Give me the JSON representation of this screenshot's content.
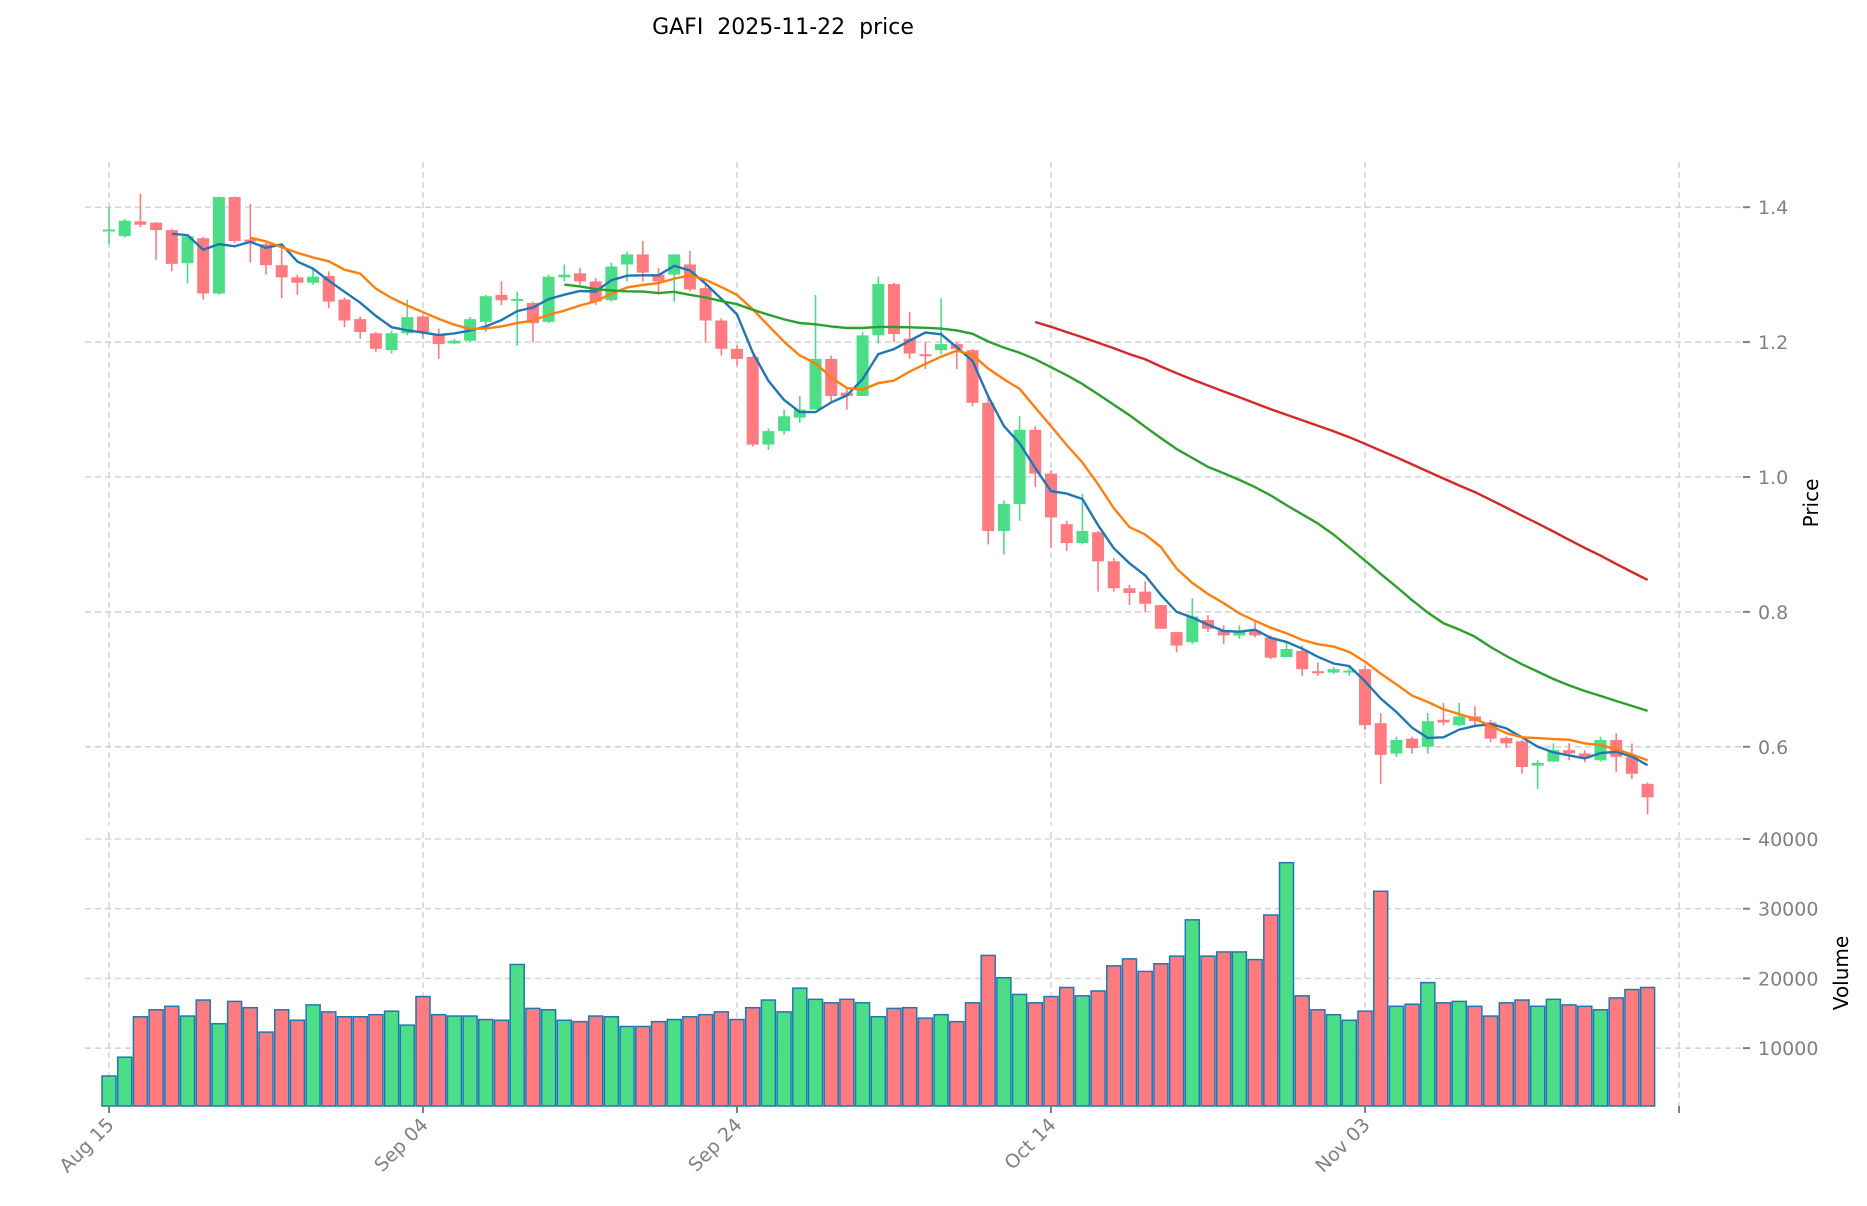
{
  "chart_data": {
    "type": "candlestick",
    "title": "GAFI  2025-11-22  price",
    "ylabel": "Price",
    "ylabel_volume": "Volume",
    "start_date": "2025-08-15",
    "ylim": [
      0.484,
      1.467
    ],
    "ylim_volume": [
      1700,
      41000
    ],
    "yticks": [
      0.6,
      0.8,
      1.0,
      1.2,
      1.4
    ],
    "yticks_volume": [
      10000,
      20000,
      30000,
      40000
    ],
    "xticks": [
      {
        "index": 0,
        "label": "Aug 15"
      },
      {
        "index": 20,
        "label": "Sep 04"
      },
      {
        "index": 40,
        "label": "Sep 24"
      },
      {
        "index": 60,
        "label": "Oct 14"
      },
      {
        "index": 80,
        "label": "Nov 03"
      },
      {
        "index": 100,
        "label": ""
      }
    ],
    "grid": true,
    "colors": {
      "up": "#4cde87",
      "down": "#ff7b80",
      "volume_edge": "#1f77b4"
    },
    "moving_averages": [
      {
        "window": 5,
        "color": "#1f77b4"
      },
      {
        "window": 10,
        "color": "#ff7f0e"
      },
      {
        "window": 30,
        "color": "#2ca02c"
      },
      {
        "window": 60,
        "color": "#d62728"
      }
    ],
    "ohlcv_fields": [
      "open",
      "high",
      "low",
      "close",
      "volume"
    ],
    "ohlcv": [
      [
        1.365,
        1.4,
        1.345,
        1.367,
        6000
      ],
      [
        1.357,
        1.383,
        1.355,
        1.38,
        8700
      ],
      [
        1.379,
        1.42,
        1.37,
        1.374,
        14500
      ],
      [
        1.377,
        1.378,
        1.322,
        1.366,
        15500
      ],
      [
        1.366,
        1.368,
        1.305,
        1.316,
        16000
      ],
      [
        1.317,
        1.36,
        1.287,
        1.357,
        14600
      ],
      [
        1.354,
        1.356,
        1.263,
        1.272,
        16900
      ],
      [
        1.272,
        1.416,
        1.27,
        1.415,
        13500
      ],
      [
        1.415,
        1.416,
        1.347,
        1.35,
        16700
      ],
      [
        1.352,
        1.405,
        1.318,
        1.349,
        15800
      ],
      [
        1.345,
        1.347,
        1.3,
        1.314,
        12300
      ],
      [
        1.314,
        1.345,
        1.265,
        1.296,
        15500
      ],
      [
        1.296,
        1.3,
        1.27,
        1.288,
        14000
      ],
      [
        1.288,
        1.31,
        1.285,
        1.297,
        16200
      ],
      [
        1.298,
        1.305,
        1.25,
        1.26,
        15200
      ],
      [
        1.263,
        1.266,
        1.222,
        1.232,
        14500
      ],
      [
        1.234,
        1.238,
        1.205,
        1.215,
        14500
      ],
      [
        1.213,
        1.215,
        1.185,
        1.19,
        14800
      ],
      [
        1.188,
        1.217,
        1.183,
        1.213,
        15300
      ],
      [
        1.213,
        1.263,
        1.21,
        1.237,
        13300
      ],
      [
        1.238,
        1.24,
        1.205,
        1.215,
        17400
      ],
      [
        1.212,
        1.22,
        1.175,
        1.197,
        14800
      ],
      [
        1.198,
        1.205,
        1.197,
        1.202,
        14600
      ],
      [
        1.202,
        1.237,
        1.2,
        1.234,
        14600
      ],
      [
        1.23,
        1.27,
        1.215,
        1.268,
        14100
      ],
      [
        1.27,
        1.29,
        1.255,
        1.262,
        14000
      ],
      [
        1.262,
        1.275,
        1.195,
        1.264,
        22000
      ],
      [
        1.258,
        1.26,
        1.2,
        1.228,
        15700
      ],
      [
        1.23,
        1.3,
        1.228,
        1.297,
        15500
      ],
      [
        1.296,
        1.315,
        1.29,
        1.3,
        14000
      ],
      [
        1.302,
        1.31,
        1.285,
        1.29,
        13800
      ],
      [
        1.29,
        1.295,
        1.255,
        1.26,
        14600
      ],
      [
        1.262,
        1.318,
        1.26,
        1.312,
        14500
      ],
      [
        1.315,
        1.334,
        1.29,
        1.33,
        13100
      ],
      [
        1.33,
        1.35,
        1.29,
        1.303,
        13100
      ],
      [
        1.3,
        1.31,
        1.27,
        1.29,
        13800
      ],
      [
        1.3,
        1.33,
        1.26,
        1.33,
        14100
      ],
      [
        1.315,
        1.335,
        1.275,
        1.278,
        14500
      ],
      [
        1.28,
        1.285,
        1.2,
        1.232,
        14800
      ],
      [
        1.232,
        1.235,
        1.18,
        1.19,
        15200
      ],
      [
        1.19,
        1.195,
        1.165,
        1.175,
        14100
      ],
      [
        1.178,
        1.18,
        1.045,
        1.048,
        15800
      ],
      [
        1.048,
        1.072,
        1.04,
        1.068,
        16900
      ],
      [
        1.068,
        1.1,
        1.063,
        1.09,
        15200
      ],
      [
        1.088,
        1.12,
        1.08,
        1.1,
        18600
      ],
      [
        1.1,
        1.27,
        1.1,
        1.175,
        17000
      ],
      [
        1.175,
        1.18,
        1.112,
        1.12,
        16500
      ],
      [
        1.125,
        1.13,
        1.1,
        1.12,
        17000
      ],
      [
        1.12,
        1.215,
        1.12,
        1.21,
        16500
      ],
      [
        1.21,
        1.297,
        1.198,
        1.286,
        14500
      ],
      [
        1.286,
        1.288,
        1.2,
        1.212,
        15700
      ],
      [
        1.205,
        1.245,
        1.175,
        1.183,
        15800
      ],
      [
        1.182,
        1.2,
        1.16,
        1.18,
        14300
      ],
      [
        1.188,
        1.265,
        1.182,
        1.197,
        14800
      ],
      [
        1.197,
        1.2,
        1.16,
        1.19,
        13800
      ],
      [
        1.188,
        1.19,
        1.105,
        1.11,
        16500
      ],
      [
        1.11,
        1.12,
        0.9,
        0.92,
        23300
      ],
      [
        0.92,
        0.965,
        0.885,
        0.96,
        20100
      ],
      [
        0.96,
        1.09,
        0.935,
        1.07,
        17700
      ],
      [
        1.07,
        1.075,
        0.985,
        1.005,
        16500
      ],
      [
        1.005,
        1.01,
        0.895,
        0.94,
        17400
      ],
      [
        0.93,
        0.935,
        0.89,
        0.902,
        18700
      ],
      [
        0.902,
        0.975,
        0.9,
        0.92,
        17500
      ],
      [
        0.918,
        0.92,
        0.83,
        0.875,
        18200
      ],
      [
        0.875,
        0.88,
        0.83,
        0.835,
        21800
      ],
      [
        0.835,
        0.84,
        0.81,
        0.828,
        22800
      ],
      [
        0.83,
        0.845,
        0.8,
        0.812,
        21000
      ],
      [
        0.81,
        0.81,
        0.775,
        0.775,
        22100
      ],
      [
        0.77,
        0.77,
        0.74,
        0.75,
        23200
      ],
      [
        0.755,
        0.82,
        0.752,
        0.793,
        28400
      ],
      [
        0.788,
        0.795,
        0.77,
        0.775,
        23200
      ],
      [
        0.772,
        0.78,
        0.752,
        0.765,
        23800
      ],
      [
        0.765,
        0.78,
        0.76,
        0.77,
        23800
      ],
      [
        0.772,
        0.785,
        0.762,
        0.765,
        22700
      ],
      [
        0.762,
        0.765,
        0.73,
        0.732,
        29100
      ],
      [
        0.733,
        0.755,
        0.733,
        0.745,
        36600
      ],
      [
        0.742,
        0.75,
        0.705,
        0.715,
        17500
      ],
      [
        0.712,
        0.725,
        0.705,
        0.71,
        15500
      ],
      [
        0.71,
        0.718,
        0.708,
        0.715,
        14800
      ],
      [
        0.71,
        0.72,
        0.705,
        0.713,
        14000
      ],
      [
        0.715,
        0.72,
        0.625,
        0.632,
        15300
      ],
      [
        0.635,
        0.65,
        0.545,
        0.588,
        32500
      ],
      [
        0.59,
        0.615,
        0.585,
        0.61,
        16000
      ],
      [
        0.612,
        0.615,
        0.59,
        0.598,
        16300
      ],
      [
        0.6,
        0.65,
        0.59,
        0.638,
        19400
      ],
      [
        0.64,
        0.665,
        0.632,
        0.636,
        16500
      ],
      [
        0.632,
        0.665,
        0.63,
        0.645,
        16700
      ],
      [
        0.645,
        0.66,
        0.63,
        0.638,
        16000
      ],
      [
        0.636,
        0.64,
        0.607,
        0.612,
        14600
      ],
      [
        0.613,
        0.615,
        0.598,
        0.605,
        16500
      ],
      [
        0.608,
        0.61,
        0.56,
        0.57,
        16900
      ],
      [
        0.572,
        0.58,
        0.537,
        0.576,
        16000
      ],
      [
        0.578,
        0.605,
        0.577,
        0.595,
        17000
      ],
      [
        0.595,
        0.605,
        0.58,
        0.59,
        16200
      ],
      [
        0.59,
        0.595,
        0.577,
        0.583,
        16000
      ],
      [
        0.58,
        0.615,
        0.578,
        0.61,
        15500
      ],
      [
        0.61,
        0.62,
        0.563,
        0.585,
        17200
      ],
      [
        0.585,
        0.605,
        0.552,
        0.56,
        18400
      ],
      [
        0.545,
        0.547,
        0.5,
        0.525,
        18700
      ]
    ]
  }
}
